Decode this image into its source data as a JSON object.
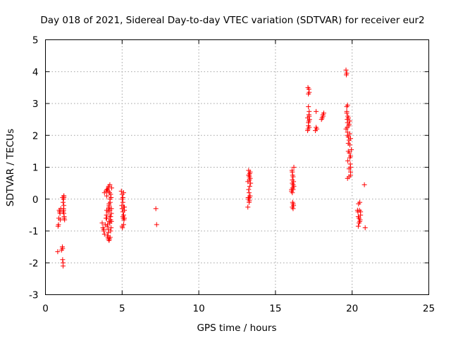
{
  "chart_data": {
    "type": "scatter",
    "title": "Day 018 of 2021, Sidereal Day-to-day VTEC variation (SDTVAR) for receiver eur2",
    "xlabel": "GPS time / hours",
    "ylabel": "SDTVAR / TECUs",
    "xlim": [
      0,
      25
    ],
    "ylim": [
      -3,
      5
    ],
    "x_ticks": [
      0,
      5,
      10,
      15,
      20,
      25
    ],
    "x_tick_labels": [
      "0",
      "5",
      "10",
      "15",
      "20",
      "25"
    ],
    "y_ticks": [
      -3,
      -2,
      -1,
      0,
      1,
      2,
      3,
      4,
      5
    ],
    "y_tick_labels": [
      "-3",
      "-2",
      "-1",
      "0",
      "1",
      "2",
      "3",
      "4",
      "5"
    ],
    "grid": true,
    "marker": "+",
    "color": "#ff0000",
    "series": [
      {
        "name": "SDTVAR",
        "x": [
          0.8,
          0.82,
          0.85,
          0.87,
          0.9,
          0.92,
          0.95,
          0.97,
          1.0,
          1.05,
          1.1,
          1.12,
          1.12,
          1.15,
          1.15,
          1.18,
          1.18,
          1.2,
          1.2,
          1.2,
          1.22,
          1.22,
          1.25,
          1.15,
          1.18,
          1.2,
          1.12,
          1.15,
          1.2,
          3.7,
          3.75,
          3.8,
          3.8,
          3.85,
          3.85,
          3.9,
          3.95,
          3.95,
          3.98,
          4.0,
          4.0,
          4.02,
          4.05,
          4.05,
          4.08,
          4.08,
          4.1,
          4.1,
          4.12,
          4.12,
          4.15,
          4.15,
          4.15,
          4.18,
          4.18,
          4.2,
          4.2,
          4.22,
          4.22,
          4.25,
          4.25,
          4.28,
          4.28,
          4.3,
          4.3,
          4.32,
          4.0,
          4.05,
          4.1,
          4.15,
          4.2,
          4.25,
          4.3,
          4.1,
          4.15,
          4.2,
          4.0,
          4.1,
          4.2,
          4.25,
          4.95,
          4.98,
          5.0,
          5.0,
          5.02,
          5.05,
          5.05,
          5.08,
          5.1,
          5.1,
          5.12,
          5.15,
          5.0,
          5.05,
          5.1,
          5.15,
          5.0,
          5.05,
          5.1,
          5.15,
          7.2,
          7.25,
          13.2,
          13.22,
          13.25,
          13.25,
          13.28,
          13.28,
          13.3,
          13.3,
          13.32,
          13.35,
          13.35,
          13.38,
          13.25,
          13.3,
          13.35,
          13.28,
          13.32,
          13.2,
          13.25,
          13.3,
          16.05,
          16.08,
          16.1,
          16.1,
          16.12,
          16.12,
          16.15,
          16.15,
          16.18,
          16.18,
          16.2,
          16.1,
          16.15,
          16.2,
          16.05,
          16.1,
          16.15,
          16.1,
          16.15,
          16.12,
          17.1,
          17.12,
          17.15,
          17.15,
          17.18,
          17.2,
          17.2,
          17.22,
          17.15,
          17.18,
          17.2,
          17.1,
          17.15,
          17.2,
          17.12,
          17.18,
          17.6,
          17.65,
          17.65,
          17.7,
          18.0,
          18.05,
          18.1,
          18.15,
          18.1,
          19.6,
          19.62,
          19.65,
          19.65,
          19.68,
          19.7,
          19.7,
          19.72,
          19.75,
          19.75,
          19.78,
          19.8,
          19.82,
          19.85,
          19.85,
          19.88,
          19.9,
          19.9,
          19.6,
          19.65,
          19.7,
          19.75,
          19.8,
          19.85,
          19.9,
          19.95,
          19.7,
          19.8,
          19.9,
          19.65,
          19.7,
          19.75,
          19.8,
          19.68,
          19.72,
          19.85,
          19.9,
          20.35,
          20.38,
          20.4,
          20.42,
          20.45,
          20.45,
          20.48,
          20.5,
          20.52,
          20.55,
          20.4,
          20.5,
          20.55,
          20.85,
          20.8
        ],
        "y": [
          -1.65,
          -0.85,
          -0.8,
          -0.6,
          -0.35,
          -0.4,
          -0.45,
          -0.65,
          -0.3,
          -1.6,
          -1.5,
          -1.55,
          -1.9,
          -2.0,
          -2.1,
          -0.35,
          0.0,
          0.05,
          0.1,
          -0.2,
          -0.55,
          -0.6,
          -0.65,
          -0.1,
          -0.3,
          -0.45,
          0.05,
          -0.4,
          0.1,
          -0.75,
          -0.9,
          -0.95,
          -1.0,
          -1.1,
          0.2,
          -0.8,
          0.25,
          -0.6,
          -0.5,
          0.1,
          -0.35,
          -0.85,
          0.3,
          -1.15,
          -1.2,
          -0.4,
          0.35,
          -1.25,
          -0.3,
          0.4,
          -0.7,
          -0.2,
          -1.3,
          0.2,
          -1.25,
          0.45,
          -0.55,
          -0.1,
          -1.2,
          0.15,
          -0.65,
          0.05,
          -0.9,
          -0.45,
          -0.3,
          0.35,
          -0.6,
          -0.8,
          -1.05,
          -0.15,
          0.0,
          -0.55,
          -0.7,
          -0.95,
          -0.25,
          -0.75,
          0.3,
          0.25,
          -0.35,
          -1.0,
          0.25,
          -0.2,
          0.15,
          -0.3,
          -0.9,
          0.05,
          -0.55,
          -0.6,
          -0.25,
          0.2,
          -0.65,
          -0.35,
          -0.85,
          -0.1,
          -0.5,
          -0.25,
          0.0,
          -0.4,
          -0.8,
          -0.6,
          -0.3,
          -0.8,
          -0.25,
          0.05,
          0.9,
          0.0,
          0.75,
          -0.1,
          0.7,
          0.6,
          0.4,
          0.85,
          0.1,
          0.5,
          0.3,
          -0.05,
          0.65,
          0.2,
          0.8,
          0.55,
          0.75,
          0.05,
          0.3,
          0.9,
          0.85,
          0.2,
          0.75,
          -0.1,
          0.7,
          0.45,
          -0.2,
          0.55,
          1.0,
          -0.25,
          0.3,
          0.4,
          0.25,
          0.6,
          -0.15,
          0.5,
          -0.3,
          0.35,
          2.55,
          3.5,
          3.3,
          2.4,
          3.45,
          2.6,
          2.75,
          2.5,
          2.9,
          2.45,
          3.35,
          2.15,
          2.3,
          2.25,
          2.2,
          2.65,
          2.15,
          2.25,
          2.75,
          2.2,
          2.5,
          2.55,
          2.6,
          2.7,
          2.65,
          4.05,
          3.9,
          3.95,
          2.7,
          2.5,
          2.95,
          2.4,
          2.6,
          2.55,
          1.95,
          2.3,
          1.85,
          1.45,
          1.3,
          1.7,
          1.1,
          1.0,
          0.85,
          2.2,
          2.75,
          2.0,
          1.75,
          2.35,
          2.45,
          1.9,
          1.55,
          0.65,
          0.7,
          0.75,
          2.9,
          2.1,
          1.5,
          0.95,
          2.25,
          1.2,
          2.05,
          1.35,
          -0.35,
          -0.4,
          -0.55,
          -0.15,
          -0.6,
          -0.75,
          -0.35,
          -0.1,
          -0.65,
          -0.4,
          -0.85,
          -0.7,
          -0.5,
          -0.9,
          0.45
        ]
      }
    ]
  }
}
